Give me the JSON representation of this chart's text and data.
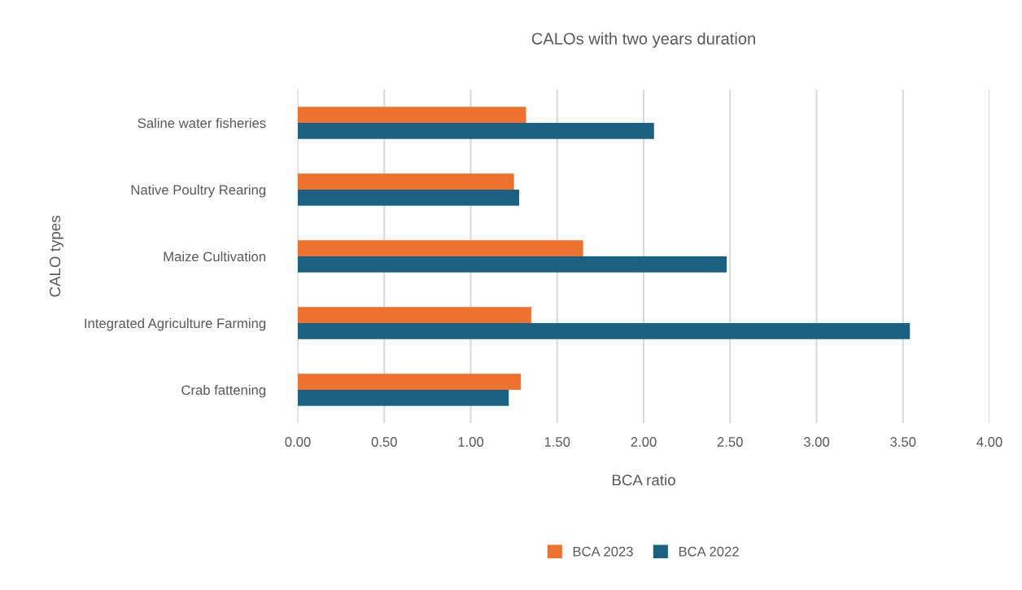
{
  "chart_data": {
    "type": "bar",
    "orientation": "horizontal",
    "title": "CALOs with two years duration",
    "xlabel": "BCA ratio",
    "ylabel": "CALO types",
    "categories": [
      "Saline water fisheries",
      "Native Poultry Rearing",
      "Maize Cultivation",
      "Integrated Agriculture Farming",
      "Crab fattening"
    ],
    "series": [
      {
        "name": "BCA 2023",
        "color": "#ed7131",
        "values": [
          1.32,
          1.25,
          1.65,
          1.35,
          1.29
        ]
      },
      {
        "name": "BCA 2022",
        "color": "#1b6182",
        "values": [
          2.06,
          1.28,
          2.48,
          3.54,
          1.22
        ]
      }
    ],
    "xlim": [
      0,
      4
    ],
    "xticks": [
      {
        "value": 0,
        "label": "0.00"
      },
      {
        "value": 0.5,
        "label": "0.50"
      },
      {
        "value": 1,
        "label": "1.00"
      },
      {
        "value": 1.5,
        "label": "1.50"
      },
      {
        "value": 2,
        "label": "2.00"
      },
      {
        "value": 2.5,
        "label": "2.50"
      },
      {
        "value": 3,
        "label": "3.00"
      },
      {
        "value": 3.5,
        "label": "3.50"
      },
      {
        "value": 4,
        "label": "4.00"
      }
    ],
    "grid": "x",
    "legend": "bottom"
  }
}
